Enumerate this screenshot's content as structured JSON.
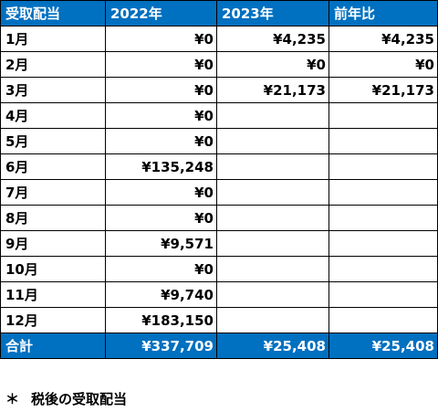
{
  "header": {
    "col1": "受取配当",
    "col2": "2022年",
    "col3": "2023年",
    "col4": "前年比"
  },
  "rows": [
    {
      "month": "1月",
      "y2022": "¥0",
      "y2023": "¥4,235",
      "yoy": "¥4,235"
    },
    {
      "month": "2月",
      "y2022": "¥0",
      "y2023": "¥0",
      "yoy": "¥0"
    },
    {
      "month": "3月",
      "y2022": "¥0",
      "y2023": "¥21,173",
      "yoy": "¥21,173"
    },
    {
      "month": "4月",
      "y2022": "¥0",
      "y2023": "",
      "yoy": ""
    },
    {
      "month": "5月",
      "y2022": "¥0",
      "y2023": "",
      "yoy": ""
    },
    {
      "month": "6月",
      "y2022": "¥135,248",
      "y2023": "",
      "yoy": ""
    },
    {
      "month": "7月",
      "y2022": "¥0",
      "y2023": "",
      "yoy": ""
    },
    {
      "month": "8月",
      "y2022": "¥0",
      "y2023": "",
      "yoy": ""
    },
    {
      "month": "9月",
      "y2022": "¥9,571",
      "y2023": "",
      "yoy": ""
    },
    {
      "month": "10月",
      "y2022": "¥0",
      "y2023": "",
      "yoy": ""
    },
    {
      "month": "11月",
      "y2022": "¥9,740",
      "y2023": "",
      "yoy": ""
    },
    {
      "month": "12月",
      "y2022": "¥183,150",
      "y2023": "",
      "yoy": ""
    }
  ],
  "total": {
    "label": "合計",
    "y2022": "¥337,709",
    "y2023": "¥25,408",
    "yoy": "¥25,408"
  },
  "footnote": {
    "mark": "＊",
    "text": "税後の受取配当"
  },
  "colors": {
    "header_bg": "#0070c0",
    "header_text": "#ffffff",
    "border": "#000000"
  }
}
